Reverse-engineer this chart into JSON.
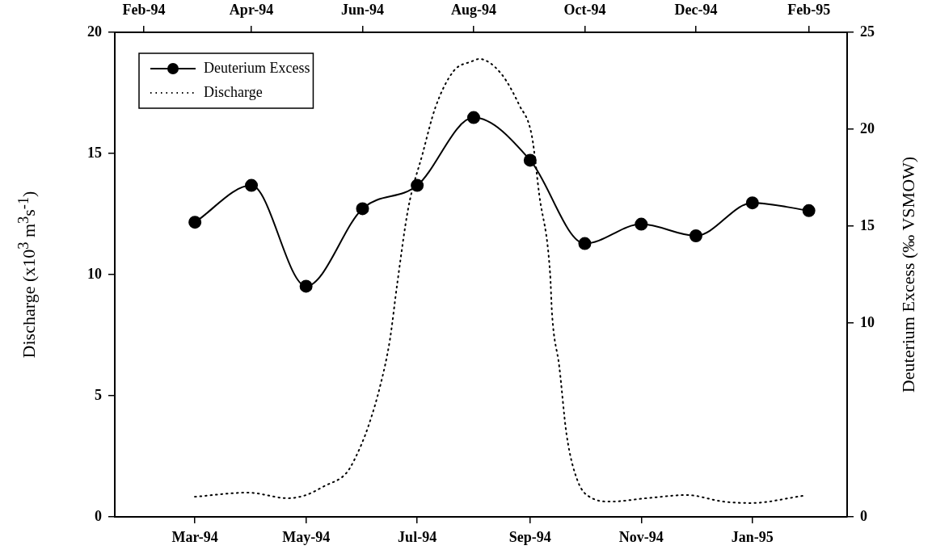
{
  "chart_data": {
    "type": "line",
    "ylabel": "Discharge (x10$^{3}$ m$^{3}$s$^{-1}$)",
    "y2label": "Deuterium Excess (‰ VSMOW)",
    "legend": "top left",
    "xlim": [
      "1994-01-16",
      "1995-02-22"
    ],
    "xticks": [
      {
        "value": "1994-03-01",
        "label": "Mar-94"
      },
      {
        "value": "1994-05-01",
        "label": "May-94"
      },
      {
        "value": "1994-07-01",
        "label": "Jul-94"
      },
      {
        "value": "1994-09-01",
        "label": "Sep-94"
      },
      {
        "value": "1994-11-01",
        "label": "Nov-94"
      },
      {
        "value": "1995-01-01",
        "label": "Jan-95"
      }
    ],
    "x2lim": [
      "1994-01-16",
      "1995-02-22"
    ],
    "x2ticks": [
      {
        "value": "1994-02-01",
        "label": "Feb-94"
      },
      {
        "value": "1994-04-01",
        "label": "Apr-94"
      },
      {
        "value": "1994-06-01",
        "label": "Jun-94"
      },
      {
        "value": "1994-08-01",
        "label": "Aug-94"
      },
      {
        "value": "1994-10-01",
        "label": "Oct-94"
      },
      {
        "value": "1994-12-01",
        "label": "Dec-94"
      },
      {
        "value": "1995-02-01",
        "label": "Feb-95"
      }
    ],
    "ylim": [
      0,
      20
    ],
    "yticks": [
      0,
      5,
      10,
      15,
      20
    ],
    "y2lim": [
      0,
      25
    ],
    "y2ticks": [
      0,
      10,
      15,
      20,
      25
    ],
    "series": [
      {
        "name": "Deuterium Excess",
        "type": "line",
        "axis": "y2",
        "color": "#000000",
        "marker": "circle",
        "line_style": "solid",
        "x": [
          "1994-03-01",
          "1994-04-01",
          "1994-05-01",
          "1994-06-01",
          "1994-07-01",
          "1994-08-01",
          "1994-09-01",
          "1994-10-01",
          "1994-11-01",
          "1994-12-01",
          "1995-01-01",
          "1995-02-01"
        ],
        "values": [
          15.2,
          17.1,
          11.9,
          15.9,
          17.1,
          20.6,
          18.4,
          14.1,
          15.1,
          14.5,
          16.2,
          15.8
        ]
      },
      {
        "name": "Discharge",
        "type": "line",
        "axis": "y",
        "color": "#000000",
        "marker": "none",
        "line_style": "dotted",
        "x": [
          "1994-03-01",
          "1994-03-30",
          "1994-04-21",
          "1994-05-01",
          "1994-05-11",
          "1994-05-23",
          "1994-05-28",
          "1994-06-04",
          "1994-06-11",
          "1994-06-16",
          "1994-06-20",
          "1994-06-26",
          "1994-07-04",
          "1994-07-11",
          "1994-07-21",
          "1994-07-31",
          "1994-08-04",
          "1994-08-16",
          "1994-08-26",
          "1994-09-02",
          "1994-09-06",
          "1994-09-12",
          "1994-09-13",
          "1994-09-17",
          "1994-09-21",
          "1994-09-27",
          "1994-10-05",
          "1994-10-15",
          "1994-11-04",
          "1994-11-26",
          "1994-12-16",
          "1994-12-31",
          "1995-01-29"
        ],
        "values": [
          0.83,
          1.0,
          0.77,
          0.9,
          1.27,
          1.8,
          2.43,
          3.7,
          5.5,
          7.3,
          9.6,
          12.7,
          15.0,
          16.9,
          18.4,
          18.8,
          18.9,
          18.3,
          17.0,
          15.7,
          13.3,
          10.0,
          8.4,
          6.2,
          3.4,
          1.5,
          0.77,
          0.63,
          0.77,
          0.9,
          0.63,
          0.57,
          0.87
        ]
      }
    ]
  }
}
